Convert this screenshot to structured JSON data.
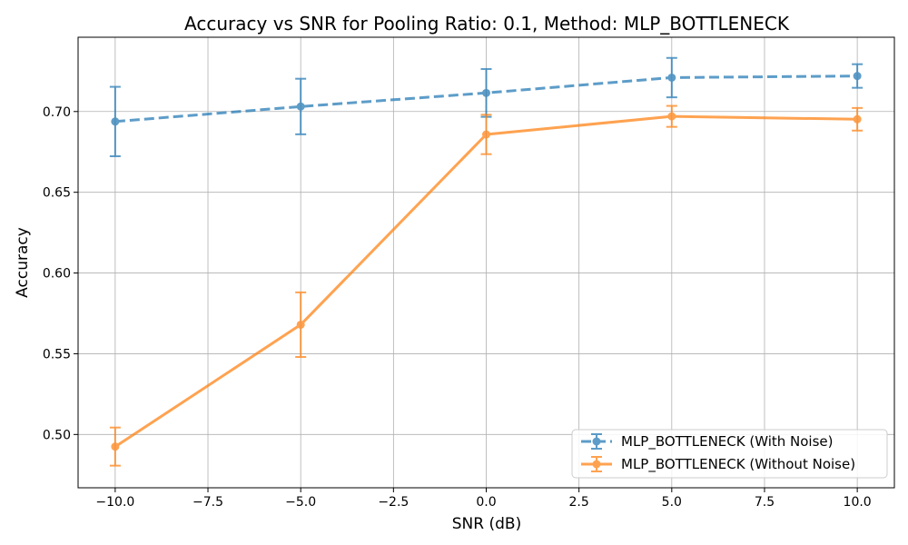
{
  "chart_data": {
    "type": "line",
    "title": "Accuracy vs SNR for Pooling Ratio: 0.1, Method: MLP_BOTTLENECK",
    "xlabel": "SNR (dB)",
    "ylabel": "Accuracy",
    "x": [
      -10,
      -5,
      0,
      5,
      10
    ],
    "xlim": [
      -11,
      11
    ],
    "ylim": [
      0.467,
      0.746
    ],
    "xticks": [
      -10,
      -7.5,
      -5,
      -2.5,
      0,
      2.5,
      5,
      7.5,
      10
    ],
    "xtick_labels": [
      "−10.0",
      "−7.5",
      "−5.0",
      "−2.5",
      "0.0",
      "2.5",
      "5.0",
      "7.5",
      "10.0"
    ],
    "yticks": [
      0.5,
      0.55,
      0.6,
      0.65,
      0.7
    ],
    "ytick_labels": [
      "0.50",
      "0.55",
      "0.60",
      "0.65",
      "0.70"
    ],
    "grid": true,
    "legend_position": "lower-right",
    "series": [
      {
        "name": "MLP_BOTTLENECK (With Noise)",
        "color": "#1f77b4",
        "linestyle": "dashed",
        "values": [
          0.6938,
          0.7031,
          0.7115,
          0.721,
          0.722
        ],
        "errors": [
          0.0215,
          0.0172,
          0.0148,
          0.0122,
          0.0073
        ]
      },
      {
        "name": "MLP_BOTTLENECK (Without Noise)",
        "color": "#ff7f0e",
        "linestyle": "solid",
        "values": [
          0.4925,
          0.568,
          0.6858,
          0.697,
          0.6952
        ],
        "errors": [
          0.0118,
          0.02,
          0.0122,
          0.0065,
          0.007
        ]
      }
    ]
  }
}
